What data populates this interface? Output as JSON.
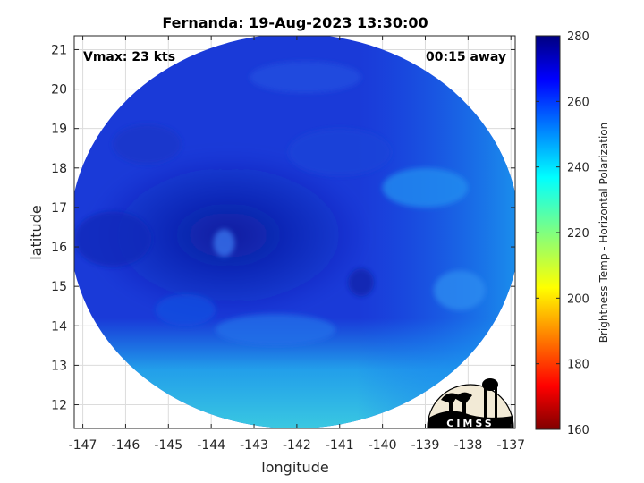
{
  "chart_data": {
    "type": "heatmap",
    "title": "Fernanda: 19-Aug-2023 13:30:00",
    "xlabel": "longitude",
    "ylabel": "latitude",
    "xlim": [
      -147.2,
      -136.9
    ],
    "ylim": [
      11.4,
      21.35
    ],
    "x_ticks": [
      -147,
      -146,
      -145,
      -144,
      -143,
      -142,
      -141,
      -140,
      -139,
      -138,
      -137
    ],
    "y_ticks": [
      12,
      13,
      14,
      15,
      16,
      17,
      18,
      19,
      20,
      21
    ],
    "grid": true,
    "annotations": {
      "vmax": "Vmax: 23 kts",
      "away": "00:15 away"
    },
    "colorbar": {
      "label": "Brightness Temp - Horizontal Polarization",
      "range": [
        160,
        280
      ],
      "ticks": [
        160,
        180,
        200,
        220,
        240,
        260,
        280
      ],
      "colormap": "jet"
    },
    "swath": {
      "center_lon": -142.05,
      "center_lat": 16.4,
      "radius_lon": 5.25,
      "radius_lat": 5.0,
      "min_lat": 11.4,
      "description_values": {
        "background_temp": 262,
        "core_temp": 270,
        "core_lon": -143.6,
        "core_lat": 16.3,
        "south_warm_temp": 238,
        "east_edge_temp": 248
      }
    },
    "logo_text": "CIMSS"
  }
}
